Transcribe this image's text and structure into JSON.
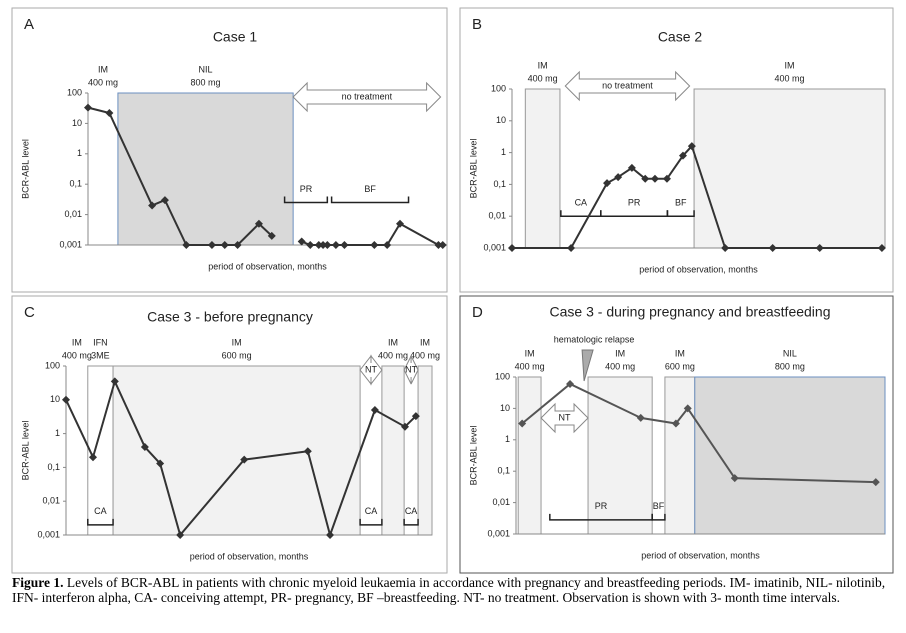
{
  "chart_data": [
    {
      "type": "line",
      "panel": "A",
      "title": "Case 1",
      "ylabel": "BCR-ABL level",
      "xlabel": "period of observation, months",
      "log_scale": true,
      "color": "#333333",
      "x": [
        0,
        5,
        15,
        18,
        23,
        29,
        32,
        35,
        40,
        43,
        46,
        50,
        52,
        54,
        55,
        56,
        58,
        60,
        67,
        70,
        73,
        82,
        83
      ],
      "values": [
        33,
        22,
        0.02,
        0.03,
        0.001,
        0.001,
        0.001,
        0.001,
        0.005,
        0.002,
        null,
        0.0013,
        0.001,
        0.001,
        0.001,
        0.001,
        0.001,
        0.001,
        0.001,
        0.001,
        0.005,
        0.001,
        0.001
      ],
      "xlim": [
        0,
        84
      ],
      "ylim": [
        0.001,
        100
      ],
      "yticks": [
        100,
        10,
        1,
        {
          "value": 0.1,
          "label": "0,1"
        },
        {
          "value": 0.01,
          "label": "0,01"
        },
        {
          "value": 0.001,
          "label": "0,001"
        }
      ],
      "regions": [
        {
          "label": [
            "IM",
            "400 mg"
          ],
          "x": [
            0,
            7
          ]
        },
        {
          "label": [
            "NIL",
            "800 mg"
          ],
          "x": [
            7,
            48
          ],
          "fill": "#d9d9d9"
        }
      ],
      "arrows": [
        {
          "label": "no treatment",
          "x": [
            48,
            82.5
          ]
        }
      ],
      "brackets": [
        {
          "label": "PR",
          "x": [
            46,
            56
          ]
        },
        {
          "label": "BF",
          "x": [
            57,
            75
          ]
        }
      ]
    },
    {
      "type": "line",
      "panel": "B",
      "title": "Case 2",
      "ylabel": "BCR-ABL level",
      "xlabel": "period of observation, months",
      "log_scale": true,
      "color": "#333333",
      "x": [
        0,
        13.3,
        21.4,
        23.9,
        27,
        30,
        32.2,
        34.9,
        38.5,
        40.5,
        48,
        58.7,
        69.3,
        83.3
      ],
      "values": [
        0.001,
        0.001,
        0.11,
        0.17,
        0.33,
        0.15,
        0.15,
        0.15,
        0.8,
        1.6,
        0.001,
        0.001,
        0.001,
        0.001
      ],
      "xlim": [
        0,
        84
      ],
      "ylim": [
        0.001,
        100
      ],
      "yticks": [
        100,
        10,
        1,
        {
          "value": 0.1,
          "label": "0,1"
        },
        {
          "value": 0.01,
          "label": "0,01"
        },
        {
          "value": 0.001,
          "label": "0,001"
        }
      ],
      "regions": [
        {
          "label": [
            "IM",
            "400 mg"
          ],
          "x": [
            3,
            10.8
          ],
          "fill": "#f2f2f2"
        },
        {
          "label": [
            "IM",
            "400 mg"
          ],
          "x": [
            41,
            84
          ],
          "fill": "#f2f2f2"
        }
      ],
      "arrows": [
        {
          "label": "no treatment",
          "x": [
            12,
            40
          ]
        }
      ],
      "brackets": [
        {
          "label": "CA",
          "x": [
            11,
            20
          ]
        },
        {
          "label": "PR",
          "x": [
            20,
            35
          ]
        },
        {
          "label": "BF",
          "x": [
            35,
            41
          ]
        }
      ]
    },
    {
      "type": "line",
      "panel": "C",
      "title": "Case 3 - before pregnancy",
      "ylabel": "BCR-ABL level",
      "xlabel": "period of observation, months",
      "log_scale": true,
      "color": "#333333",
      "x": [
        0,
        6.2,
        11.2,
        18.1,
        21.6,
        26.2,
        40.9,
        55.5,
        60.6,
        70.9,
        77.8,
        80.3
      ],
      "values": [
        10,
        0.2,
        35,
        0.4,
        0.13,
        0.001,
        0.17,
        0.3,
        0.001,
        5,
        1.6,
        3.3
      ],
      "xlim": [
        0,
        84
      ],
      "ylim": [
        0.001,
        100
      ],
      "yticks": [
        100,
        10,
        1,
        {
          "value": 0.1,
          "label": "0,1"
        },
        {
          "value": 0.01,
          "label": "0,01"
        },
        {
          "value": 0.001,
          "label": "0,001"
        }
      ],
      "regions": [
        {
          "label": [
            "IM",
            "400 mg"
          ],
          "x": [
            0,
            5
          ]
        },
        {
          "label": [
            "IFN",
            "3ME"
          ],
          "x": [
            5,
            10.8
          ],
          "fill": "#ffffff"
        },
        {
          "label": [
            "IM",
            "600 mg"
          ],
          "x": [
            10.8,
            67.5
          ],
          "fill": "#f2f2f2"
        },
        {
          "label": [
            "IM",
            "400 mg"
          ],
          "x": [
            72.5,
            77.6
          ],
          "fill": "#f2f2f2"
        },
        {
          "label": [
            "IM",
            "400 mg"
          ],
          "x": [
            80.8,
            84
          ],
          "fill": "#f2f2f2"
        }
      ],
      "arrows": [
        {
          "label": "NT",
          "x": [
            67.5,
            72.5
          ]
        },
        {
          "label": "NT",
          "x": [
            77.6,
            80.8
          ]
        }
      ],
      "brackets": [
        {
          "label": "CA",
          "x": [
            5,
            10.8
          ]
        },
        {
          "label": "CA",
          "x": [
            67.5,
            72.5
          ]
        },
        {
          "label": "CA",
          "x": [
            77.6,
            80.8
          ]
        }
      ]
    },
    {
      "type": "line",
      "panel": "D",
      "title": "Case 3 - during pregnancy and breastfeeding",
      "ylabel": "BCR-ABL level",
      "xlabel": "period of observation, months",
      "log_scale": true,
      "color": "#555555",
      "x": [
        1.4,
        12.3,
        28.4,
        36.4,
        39.1,
        49.8,
        81.9
      ],
      "values": [
        3.3,
        60,
        5,
        3.3,
        10,
        0.06,
        0.045
      ],
      "xlim": [
        0,
        84
      ],
      "ylim": [
        0.001,
        100
      ],
      "yticks": [
        100,
        10,
        1,
        {
          "value": 0.1,
          "label": "0,1"
        },
        {
          "value": 0.01,
          "label": "0,01"
        },
        {
          "value": 0.001,
          "label": "0,001"
        }
      ],
      "regions": [
        {
          "label": [
            "IM",
            "400 mg"
          ],
          "x": [
            0.5,
            5.7
          ],
          "fill": "#f2f2f2"
        },
        {
          "label": [
            "IM",
            "400 mg"
          ],
          "x": [
            16.4,
            31
          ],
          "fill": "#f2f2f2"
        },
        {
          "label": [
            "IM",
            "600 mg"
          ],
          "x": [
            33.9,
            40.7
          ],
          "fill": "#f2f2f2"
        },
        {
          "label": [
            "NIL",
            "800 mg"
          ],
          "x": [
            40.7,
            84
          ],
          "fill": "#d9d9d9"
        }
      ],
      "arrows": [
        {
          "label": "NT",
          "x": [
            5.7,
            16.4
          ]
        }
      ],
      "brackets": [
        {
          "label": "PR",
          "x": [
            7.7,
            31
          ]
        },
        {
          "label": "BF",
          "x": [
            31,
            33.9
          ]
        }
      ],
      "annotation": {
        "text": "hematologic relapse",
        "x": 15.5
      }
    }
  ],
  "caption": {
    "label": "Figure 1.",
    "text": "Levels of BCR-ABL in patients with chronic myeloid leukaemia in accordance with pregnancy and breastfeeding periods. IM- imatinib, NIL- nilotinib, IFN- interferon alpha, CA- conceiving attempt, PR- pregnancy, BF –breastfeeding. NT- no treatment. Observation is shown with 3- month time intervals."
  }
}
